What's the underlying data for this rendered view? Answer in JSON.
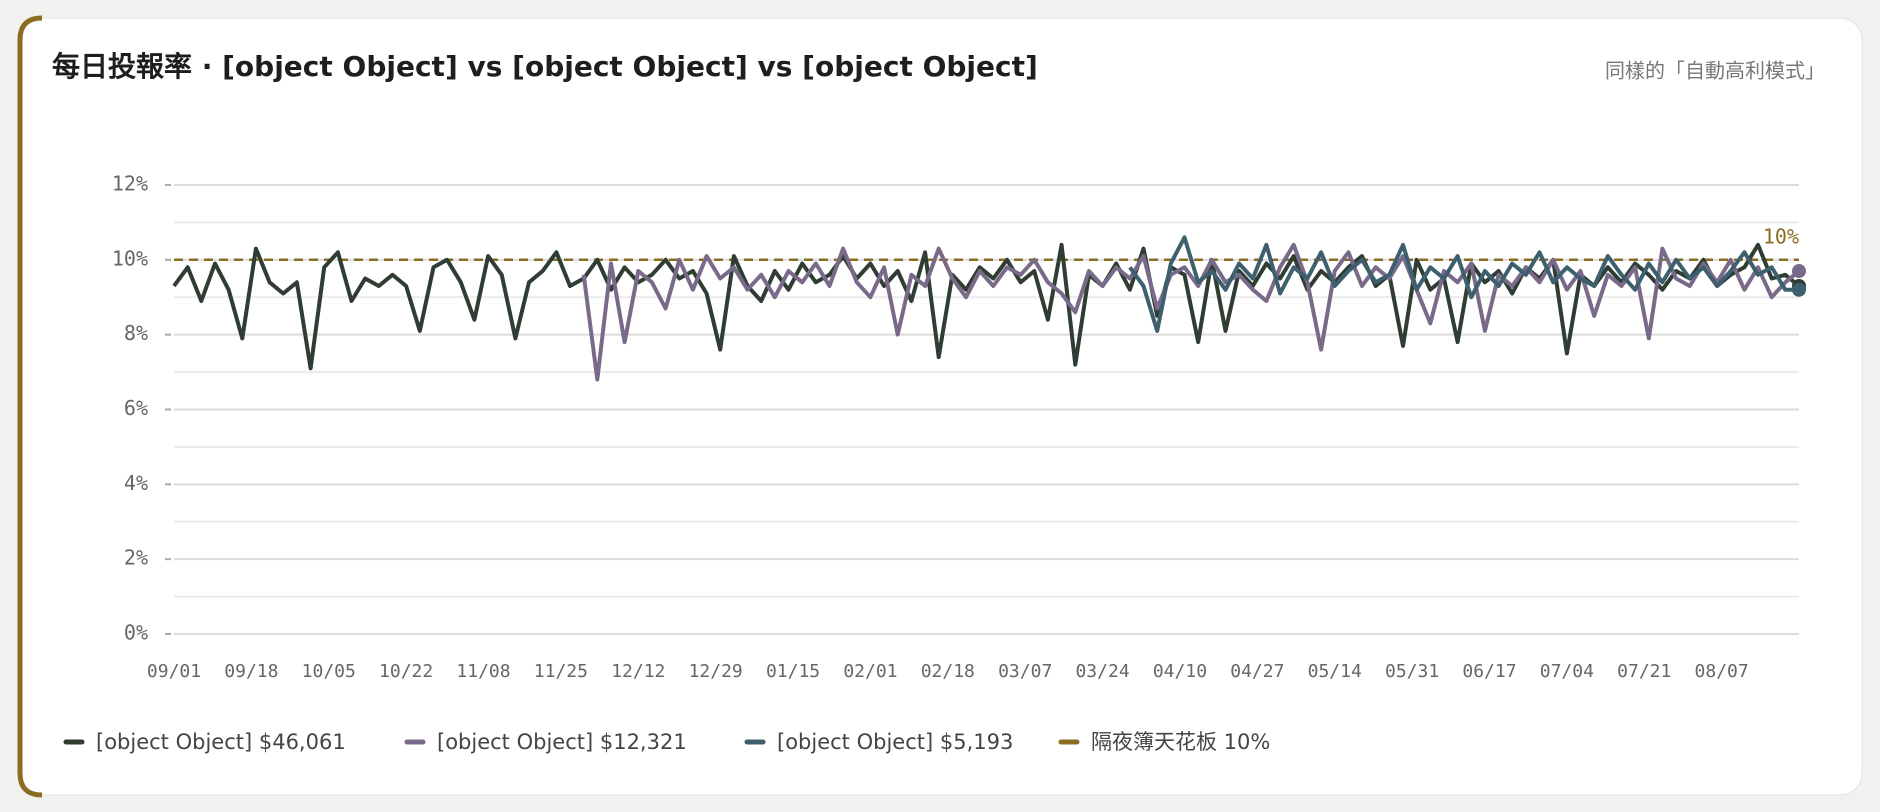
{
  "chart_data": {
    "type": "line",
    "title": "每日投報率 · [object Object] vs [object Object] vs [object Object]",
    "subtitle": "同樣的「自動高利模式」",
    "x": [
      "09/01",
      "09/04",
      "09/07",
      "09/10",
      "09/13",
      "09/16",
      "09/19",
      "09/22",
      "09/25",
      "09/28",
      "10/01",
      "10/04",
      "10/07",
      "10/10",
      "10/13",
      "10/16",
      "10/19",
      "10/22",
      "10/25",
      "10/28",
      "10/31",
      "11/03",
      "11/06",
      "11/09",
      "11/12",
      "11/15",
      "11/18",
      "11/21",
      "11/24",
      "11/27",
      "11/30",
      "12/03",
      "12/06",
      "12/09",
      "12/12",
      "12/15",
      "12/18",
      "12/21",
      "12/24",
      "12/27",
      "12/30",
      "01/02",
      "01/05",
      "01/08",
      "01/11",
      "01/14",
      "01/17",
      "01/20",
      "01/23",
      "01/26",
      "01/29",
      "02/01",
      "02/04",
      "02/07",
      "02/10",
      "02/13",
      "02/16",
      "02/19",
      "02/22",
      "02/25",
      "02/28",
      "03/03",
      "03/06",
      "03/09",
      "03/12",
      "03/15",
      "03/18",
      "03/21",
      "03/24",
      "03/27",
      "03/30",
      "04/02",
      "04/05",
      "04/08",
      "04/11",
      "04/14",
      "04/17",
      "04/20",
      "04/23",
      "04/26",
      "04/29",
      "05/02",
      "05/05",
      "05/08",
      "05/11",
      "05/14",
      "05/17",
      "05/20",
      "05/23",
      "05/26",
      "05/29",
      "06/01",
      "06/04",
      "06/07",
      "06/10",
      "06/13",
      "06/16",
      "06/19",
      "06/22",
      "06/25",
      "06/28",
      "07/01",
      "07/04",
      "07/07",
      "07/10",
      "07/13",
      "07/16",
      "07/19",
      "07/22",
      "07/25",
      "07/28",
      "07/31",
      "08/03",
      "08/06",
      "08/09",
      "08/12",
      "08/15",
      "08/18",
      "08/21",
      "08/24"
    ],
    "xticks": [
      "09/01",
      "09/18",
      "10/05",
      "10/22",
      "11/08",
      "11/25",
      "12/12",
      "12/29",
      "01/15",
      "02/01",
      "02/18",
      "03/07",
      "03/24",
      "04/10",
      "04/27",
      "05/14",
      "05/31",
      "06/17",
      "07/04",
      "07/21",
      "08/07"
    ],
    "series": [
      {
        "name": "[object Object] $46,061",
        "color": "#2f3d33",
        "values": [
          9.3,
          9.8,
          8.9,
          9.9,
          9.2,
          7.9,
          10.3,
          9.4,
          9.1,
          9.4,
          7.1,
          9.8,
          10.2,
          8.9,
          9.5,
          9.3,
          9.6,
          9.3,
          8.1,
          9.8,
          10.0,
          9.4,
          8.4,
          10.1,
          9.6,
          7.9,
          9.4,
          9.7,
          10.2,
          9.3,
          9.5,
          10.0,
          9.2,
          9.8,
          9.4,
          9.6,
          10.0,
          9.5,
          9.7,
          9.1,
          7.6,
          10.1,
          9.3,
          8.9,
          9.7,
          9.2,
          9.9,
          9.4,
          9.6,
          10.1,
          9.5,
          9.9,
          9.3,
          9.7,
          8.9,
          10.2,
          7.4,
          9.6,
          9.2,
          9.8,
          9.5,
          10.0,
          9.4,
          9.7,
          8.4,
          10.4,
          7.2,
          9.6,
          9.3,
          9.9,
          9.2,
          10.3,
          8.5,
          9.8,
          9.6,
          7.8,
          10.0,
          8.1,
          9.7,
          9.3,
          9.9,
          9.5,
          10.1,
          9.2,
          9.7,
          9.4,
          9.8,
          10.1,
          9.3,
          9.6,
          7.7,
          10.0,
          9.2,
          9.5,
          7.8,
          9.9,
          9.4,
          9.7,
          9.1,
          9.8,
          9.5,
          10.0,
          7.5,
          9.6,
          9.3,
          9.8,
          9.4,
          9.9,
          9.6,
          9.2,
          9.7,
          9.5,
          10.0,
          9.3,
          9.6,
          9.8,
          10.4,
          9.5,
          9.6,
          9.3
        ]
      },
      {
        "name": "[object Object] $12,321",
        "color": "#7a6a8a",
        "values": [
          null,
          null,
          null,
          null,
          null,
          null,
          null,
          null,
          null,
          null,
          null,
          null,
          null,
          null,
          null,
          null,
          null,
          null,
          null,
          null,
          null,
          null,
          null,
          null,
          null,
          null,
          null,
          null,
          null,
          null,
          9.6,
          6.8,
          9.9,
          7.8,
          9.7,
          9.4,
          8.7,
          10.0,
          9.2,
          10.1,
          9.5,
          9.8,
          9.2,
          9.6,
          9.0,
          9.7,
          9.4,
          9.9,
          9.3,
          10.3,
          9.4,
          9.0,
          9.8,
          8.0,
          9.6,
          9.3,
          10.3,
          9.5,
          9.0,
          9.7,
          9.3,
          9.8,
          9.6,
          10.0,
          9.4,
          9.1,
          8.6,
          9.7,
          9.3,
          9.8,
          9.5,
          10.1,
          8.7,
          9.6,
          9.8,
          9.3,
          10.0,
          9.4,
          9.6,
          9.2,
          8.9,
          9.8,
          10.4,
          9.4,
          7.6,
          9.7,
          10.2,
          9.3,
          9.8,
          9.5,
          10.1,
          9.2,
          8.3,
          9.7,
          9.4,
          9.9,
          8.1,
          9.6,
          9.3,
          9.8,
          9.4,
          10.0,
          9.2,
          9.7,
          8.5,
          9.6,
          9.3,
          9.8,
          7.9,
          10.3,
          9.5,
          9.3,
          9.9,
          9.4,
          10.0,
          9.2,
          9.8,
          9.0,
          9.4,
          9.7
        ]
      },
      {
        "name": "[object Object] $5,193",
        "color": "#3d5f6e",
        "values": [
          null,
          null,
          null,
          null,
          null,
          null,
          null,
          null,
          null,
          null,
          null,
          null,
          null,
          null,
          null,
          null,
          null,
          null,
          null,
          null,
          null,
          null,
          null,
          null,
          null,
          null,
          null,
          null,
          null,
          null,
          null,
          null,
          null,
          null,
          null,
          null,
          null,
          null,
          null,
          null,
          null,
          null,
          null,
          null,
          null,
          null,
          null,
          null,
          null,
          null,
          null,
          null,
          null,
          null,
          null,
          null,
          null,
          null,
          null,
          null,
          null,
          null,
          null,
          null,
          null,
          null,
          null,
          null,
          null,
          null,
          9.8,
          9.3,
          8.1,
          9.9,
          10.6,
          9.4,
          9.7,
          9.2,
          9.9,
          9.5,
          10.4,
          9.1,
          9.8,
          9.5,
          10.2,
          9.3,
          9.7,
          10.0,
          9.4,
          9.6,
          10.4,
          9.2,
          9.8,
          9.5,
          10.1,
          9.0,
          9.7,
          9.3,
          9.9,
          9.6,
          10.2,
          9.4,
          9.8,
          9.5,
          9.3,
          10.1,
          9.6,
          9.2,
          9.9,
          9.4,
          10.0,
          9.5,
          9.8,
          9.3,
          9.7,
          10.2,
          9.6,
          9.8,
          9.2,
          9.2
        ]
      }
    ],
    "threshold": {
      "name": "隔夜簿天花板 10%",
      "value": 10,
      "label": "10%",
      "color": "#8a6d22"
    },
    "ylim": [
      0,
      12.4
    ],
    "yticks": [
      {
        "value": 0,
        "label": "0%"
      },
      {
        "value": 2,
        "label": "2%"
      },
      {
        "value": 4,
        "label": "4%"
      },
      {
        "value": 6,
        "label": "6%"
      },
      {
        "value": 8,
        "label": "8%"
      },
      {
        "value": 10,
        "label": "10%"
      },
      {
        "value": 12,
        "label": "12%"
      }
    ],
    "minor_yticks": [
      1,
      3,
      5,
      7,
      9,
      11
    ],
    "grid": true
  }
}
